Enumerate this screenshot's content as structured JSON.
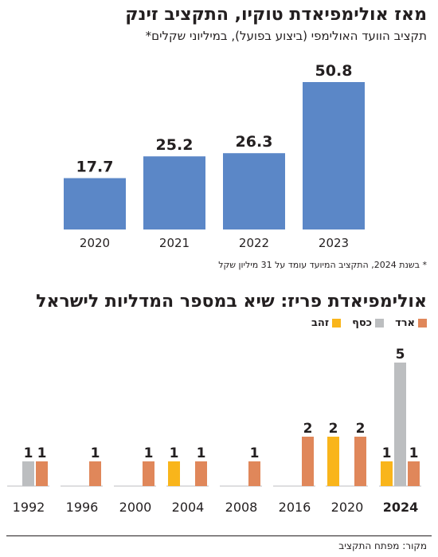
{
  "chart_data": [
    {
      "type": "bar",
      "title": "מאז אולימפיאדת טוקיו, התקציב זינק",
      "subtitle": "תקציב הוועד האולימפי (ביצוע בפועל), במיליוני שקלים*",
      "categories": [
        "2020",
        "2021",
        "2022",
        "2023"
      ],
      "values": [
        17.7,
        25.2,
        26.3,
        50.8
      ],
      "value_labels": [
        "17.7",
        "25.2",
        "26.3",
        "50.8"
      ],
      "ylim": [
        0,
        50.8
      ],
      "grid": false,
      "bar_color": "#5b87c7",
      "footnote": "* בשנת 2024, התקציב המיועד עומד על 31 מיליון שקל"
    },
    {
      "type": "bar",
      "title": "אולימפיאדת פריז: שיא במספר המדליות לישראל",
      "categories": [
        "1992",
        "1996",
        "2000",
        "2004",
        "2008",
        "2016",
        "2020",
        "2024"
      ],
      "series": [
        {
          "name": "זהב",
          "color": "#f9b51b",
          "values": [
            0,
            0,
            0,
            1,
            0,
            0,
            2,
            1
          ]
        },
        {
          "name": "כסף",
          "color": "#bcbec0",
          "values": [
            1,
            0,
            0,
            0,
            0,
            0,
            0,
            5
          ]
        },
        {
          "name": "ארד",
          "color": "#e0875a",
          "values": [
            1,
            1,
            1,
            1,
            1,
            2,
            2,
            1
          ]
        }
      ],
      "highlight_category": "2024",
      "ylim": [
        0,
        5
      ],
      "legend_position": "top-right",
      "grid": false
    }
  ],
  "source": "מקור: מפתח התקציב"
}
